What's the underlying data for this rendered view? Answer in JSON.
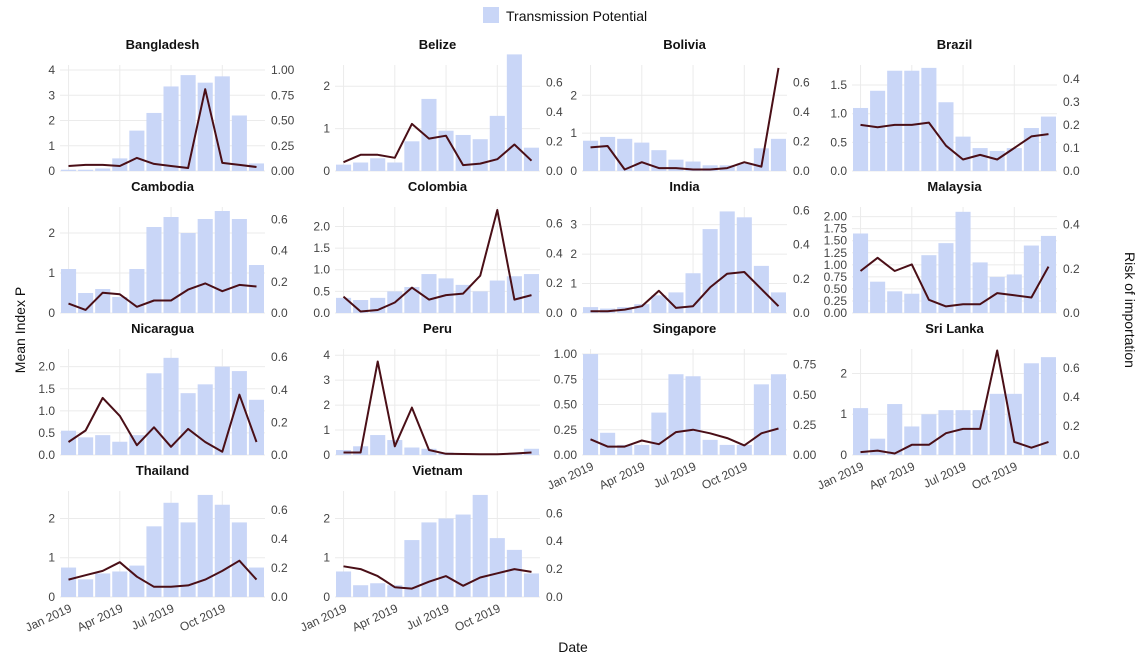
{
  "chart_data": {
    "type": "bar+line",
    "legend": {
      "label": "Transmission Potential",
      "placement": "top-center"
    },
    "xlabel": "Date",
    "ylabel_left": "Mean Index P",
    "ylabel_right": "Risk of importation",
    "months": [
      "2019-01",
      "2019-02",
      "2019-03",
      "2019-04",
      "2019-05",
      "2019-06",
      "2019-07",
      "2019-08",
      "2019-09",
      "2019-10",
      "2019-11",
      "2019-12"
    ],
    "date_ticks": [
      "Jan 2019",
      "Apr 2019",
      "Jul 2019",
      "Oct 2019"
    ],
    "colors": {
      "bar": "#c9d6f7",
      "line": "#4a0f17",
      "grid": "#ebebeb"
    },
    "grid": true,
    "panels": [
      {
        "title": "Bangladesh",
        "left_ticks": [
          "0",
          "1",
          "2",
          "3",
          "4"
        ],
        "left_max": 4.2,
        "right_ticks": [
          "0.00",
          "0.25",
          "0.50",
          "0.75",
          "1.00"
        ],
        "right_max": 1.05,
        "bars": [
          0.05,
          0.05,
          0.1,
          0.5,
          1.6,
          2.3,
          3.35,
          3.8,
          3.5,
          3.75,
          2.2,
          0.3
        ],
        "line": [
          0.05,
          0.06,
          0.06,
          0.05,
          0.13,
          0.07,
          0.05,
          0.03,
          0.81,
          0.08,
          0.06,
          0.04
        ]
      },
      {
        "title": "Belize",
        "left_ticks": [
          "0",
          "1",
          "2"
        ],
        "left_max": 2.5,
        "right_ticks": [
          "0.0",
          "0.2",
          "0.4",
          "0.6"
        ],
        "right_max": 0.72,
        "bars": [
          0.15,
          0.2,
          0.3,
          0.2,
          0.7,
          1.7,
          0.95,
          0.85,
          0.75,
          1.3,
          2.75,
          0.55
        ],
        "line": [
          0.06,
          0.11,
          0.11,
          0.09,
          0.32,
          0.22,
          0.24,
          0.04,
          0.05,
          0.08,
          0.18,
          0.07
        ]
      },
      {
        "title": "Bolivia",
        "left_ticks": [
          "0",
          "1",
          "2"
        ],
        "left_max": 2.8,
        "right_ticks": [
          "0.0",
          "0.2",
          "0.4",
          "0.6"
        ],
        "right_max": 0.72,
        "bars": [
          0.8,
          0.9,
          0.85,
          0.75,
          0.55,
          0.3,
          0.25,
          0.15,
          0.15,
          0.2,
          0.6,
          0.85
        ],
        "line": [
          0.16,
          0.17,
          0.01,
          0.06,
          0.02,
          0.02,
          0.01,
          0.01,
          0.02,
          0.06,
          0.03,
          0.7
        ]
      },
      {
        "title": "Brazil",
        "left_ticks": [
          "0.0",
          "0.5",
          "1.0",
          "1.5"
        ],
        "left_max": 1.85,
        "right_ticks": [
          "0.0",
          "0.1",
          "0.2",
          "0.3",
          "0.4"
        ],
        "right_max": 0.46,
        "bars": [
          1.1,
          1.4,
          1.75,
          1.75,
          1.8,
          1.2,
          0.6,
          0.4,
          0.35,
          0.4,
          0.75,
          0.95
        ],
        "line": [
          0.2,
          0.19,
          0.2,
          0.2,
          0.21,
          0.11,
          0.05,
          0.07,
          0.05,
          0.1,
          0.15,
          0.16
        ]
      },
      {
        "title": "Cambodia",
        "left_ticks": [
          "0",
          "1",
          "2"
        ],
        "left_max": 2.65,
        "right_ticks": [
          "0.0",
          "0.2",
          "0.4",
          "0.6"
        ],
        "right_max": 0.68,
        "bars": [
          1.1,
          0.5,
          0.6,
          0.4,
          1.1,
          2.15,
          2.4,
          2.0,
          2.35,
          2.55,
          2.35,
          1.2
        ],
        "line": [
          0.06,
          0.02,
          0.13,
          0.12,
          0.04,
          0.08,
          0.08,
          0.15,
          0.19,
          0.14,
          0.18,
          0.17
        ]
      },
      {
        "title": "Colombia",
        "left_ticks": [
          "0.0",
          "0.5",
          "1.0",
          "1.5",
          "2.0"
        ],
        "left_max": 2.45,
        "right_ticks": [
          "0.0",
          "0.2",
          "0.4",
          "0.6"
        ],
        "right_max": 0.71,
        "bars": [
          0.35,
          0.3,
          0.35,
          0.5,
          0.6,
          0.9,
          0.8,
          0.65,
          0.5,
          0.75,
          0.85,
          0.9
        ],
        "line": [
          0.11,
          0.01,
          0.02,
          0.07,
          0.17,
          0.09,
          0.12,
          0.13,
          0.25,
          0.69,
          0.09,
          0.12
        ]
      },
      {
        "title": "India",
        "left_ticks": [
          "0",
          "1",
          "2",
          "3"
        ],
        "left_max": 3.6,
        "right_ticks": [
          "0.0",
          "0.2",
          "0.4",
          "0.6"
        ],
        "right_max": 0.62,
        "bars": [
          0.2,
          0.15,
          0.2,
          0.3,
          0.6,
          0.7,
          1.35,
          2.85,
          3.45,
          3.25,
          1.6,
          0.7
        ],
        "line": [
          0.01,
          0.01,
          0.02,
          0.04,
          0.13,
          0.03,
          0.04,
          0.15,
          0.23,
          0.24,
          0.14,
          0.04
        ]
      },
      {
        "title": "Malaysia",
        "left_ticks": [
          "0.00",
          "0.25",
          "0.50",
          "0.75",
          "1.00",
          "1.25",
          "1.50",
          "1.75",
          "2.00"
        ],
        "left_max": 2.2,
        "right_ticks": [
          "0.0",
          "0.2",
          "0.4"
        ],
        "right_max": 0.48,
        "bars": [
          1.65,
          0.65,
          0.45,
          0.4,
          1.2,
          1.45,
          2.1,
          1.05,
          0.75,
          0.8,
          1.4,
          1.6
        ],
        "line": [
          0.19,
          0.25,
          0.19,
          0.22,
          0.06,
          0.03,
          0.04,
          0.04,
          0.09,
          0.08,
          0.07,
          0.21
        ]
      },
      {
        "title": "Nicaragua",
        "left_ticks": [
          "0.0",
          "0.5",
          "1.0",
          "1.5",
          "2.0"
        ],
        "left_max": 2.4,
        "right_ticks": [
          "0.0",
          "0.2",
          "0.4",
          "0.6"
        ],
        "right_max": 0.65,
        "bars": [
          0.55,
          0.4,
          0.45,
          0.3,
          0.45,
          1.85,
          2.2,
          1.4,
          1.6,
          2.0,
          1.9,
          1.25
        ],
        "line": [
          0.08,
          0.15,
          0.35,
          0.24,
          0.06,
          0.17,
          0.05,
          0.16,
          0.08,
          0.02,
          0.37,
          0.08
        ]
      },
      {
        "title": "Peru",
        "left_ticks": [
          "0",
          "1",
          "2",
          "3",
          "4"
        ],
        "left_max": 4.25,
        "right_ticks": [],
        "right_max": 4.25,
        "bars": [
          0.2,
          0.35,
          0.8,
          0.6,
          0.3,
          0.25,
          0.1,
          0.05,
          0.05,
          0.05,
          0.05,
          0.25
        ],
        "line": [
          0.1,
          0.1,
          3.75,
          0.35,
          1.9,
          0.2,
          0.05,
          0.04,
          0.03,
          0.03,
          0.06,
          0.1
        ]
      },
      {
        "title": "Singapore",
        "left_ticks": [
          "0.00",
          "0.25",
          "0.50",
          "0.75",
          "1.00"
        ],
        "left_max": 1.05,
        "right_ticks": [
          "0.00",
          "0.25",
          "0.50",
          "0.75"
        ],
        "right_max": 0.88,
        "bars": [
          1.0,
          0.22,
          0.1,
          0.1,
          0.42,
          0.8,
          0.78,
          0.15,
          0.1,
          0.1,
          0.7,
          0.8
        ],
        "line": [
          0.13,
          0.07,
          0.07,
          0.12,
          0.09,
          0.19,
          0.21,
          0.18,
          0.14,
          0.08,
          0.18,
          0.22
        ]
      },
      {
        "title": "Sri Lanka",
        "left_ticks": [
          "0",
          "1",
          "2"
        ],
        "left_max": 2.6,
        "right_ticks": [
          "0.0",
          "0.2",
          "0.4",
          "0.6"
        ],
        "right_max": 0.73,
        "bars": [
          1.15,
          0.4,
          1.25,
          0.7,
          1.0,
          1.1,
          1.1,
          1.1,
          1.5,
          1.5,
          2.25,
          2.4
        ],
        "line": [
          0.02,
          0.03,
          0.01,
          0.07,
          0.07,
          0.15,
          0.18,
          0.18,
          0.72,
          0.09,
          0.05,
          0.09
        ]
      },
      {
        "title": "Thailand",
        "left_ticks": [
          "0",
          "1",
          "2"
        ],
        "left_max": 2.7,
        "right_ticks": [
          "0.0",
          "0.2",
          "0.4",
          "0.6"
        ],
        "right_max": 0.73,
        "bars": [
          0.75,
          0.45,
          0.6,
          0.65,
          0.8,
          1.8,
          2.4,
          1.9,
          2.6,
          2.35,
          1.9,
          0.75
        ],
        "line": [
          0.12,
          0.15,
          0.18,
          0.24,
          0.14,
          0.07,
          0.07,
          0.08,
          0.12,
          0.18,
          0.25,
          0.12
        ]
      },
      {
        "title": "Vietnam",
        "left_ticks": [
          "0",
          "1",
          "2"
        ],
        "left_max": 2.7,
        "right_ticks": [
          "0.0",
          "0.2",
          "0.4",
          "0.6"
        ],
        "right_max": 0.76,
        "bars": [
          0.65,
          0.3,
          0.35,
          0.3,
          1.45,
          1.9,
          2.0,
          2.1,
          2.6,
          1.5,
          1.2,
          0.6
        ],
        "line": [
          0.22,
          0.2,
          0.15,
          0.07,
          0.06,
          0.11,
          0.15,
          0.08,
          0.14,
          0.17,
          0.2,
          0.18
        ]
      }
    ]
  }
}
